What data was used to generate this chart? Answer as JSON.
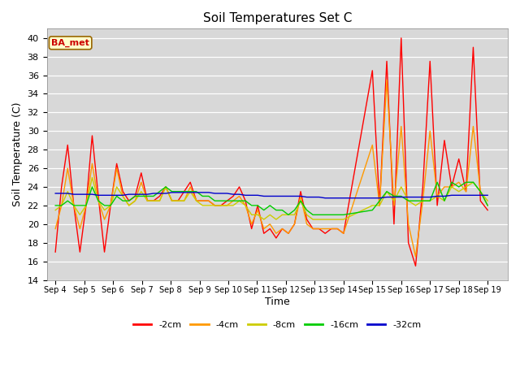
{
  "title": "Soil Temperatures Set C",
  "xlabel": "Time",
  "ylabel": "Soil Temperature (C)",
  "ylim": [
    14,
    41
  ],
  "yticks": [
    14,
    16,
    18,
    20,
    22,
    24,
    26,
    28,
    30,
    32,
    34,
    36,
    38,
    40
  ],
  "annotation": "BA_met",
  "plot_bg_color": "#d8d8d8",
  "fig_bg_color": "#ffffff",
  "legend_colors": {
    "-2cm": "#ff0000",
    "-4cm": "#ff9900",
    "-8cm": "#cccc00",
    "-16cm": "#00cc00",
    "-32cm": "#0000cc"
  },
  "x_labels": [
    "Sep 4",
    "Sep 5",
    "Sep 6",
    "Sep 7",
    "Sep 8",
    "Sep 9",
    "Sep 10",
    "Sep 11",
    "Sep 12",
    "Sep 13",
    "Sep 14",
    "Sep 15",
    "Sep 16",
    "Sep 17",
    "Sep 18",
    "Sep 19"
  ],
  "n_points": 48,
  "series": {
    "-2cm": [
      17.0,
      24.0,
      28.5,
      22.0,
      17.0,
      22.0,
      29.5,
      23.0,
      17.0,
      22.0,
      26.5,
      23.5,
      22.5,
      23.0,
      25.5,
      22.5,
      22.5,
      23.0,
      24.0,
      22.5,
      22.5,
      23.5,
      24.5,
      22.5,
      22.5,
      22.5,
      22.0,
      22.0,
      22.5,
      23.0,
      24.0,
      22.5,
      19.5,
      22.0,
      19.0,
      19.5,
      18.5,
      19.5,
      19.0,
      20.0,
      23.5,
      20.5,
      19.5,
      19.5,
      19.0,
      19.5,
      19.5,
      19.0
    ],
    "-4cm": [
      19.5,
      22.0,
      26.0,
      22.0,
      19.5,
      22.0,
      26.5,
      22.5,
      20.5,
      22.0,
      26.0,
      23.0,
      22.0,
      22.5,
      24.5,
      22.5,
      22.5,
      22.5,
      24.0,
      22.5,
      22.5,
      22.5,
      24.0,
      22.5,
      22.5,
      22.5,
      22.0,
      22.0,
      22.0,
      22.5,
      23.0,
      22.0,
      20.0,
      21.5,
      19.5,
      20.0,
      19.0,
      19.5,
      19.0,
      20.0,
      23.0,
      20.0,
      19.5,
      19.5,
      19.5,
      19.5,
      19.5,
      19.0
    ],
    "-8cm": [
      21.5,
      22.0,
      23.5,
      22.0,
      21.0,
      22.0,
      25.0,
      22.5,
      21.5,
      22.0,
      24.0,
      23.0,
      22.0,
      22.5,
      23.5,
      22.5,
      22.5,
      22.5,
      24.0,
      22.5,
      22.5,
      22.5,
      23.5,
      22.5,
      22.0,
      22.0,
      22.0,
      22.0,
      22.0,
      22.0,
      22.5,
      22.0,
      21.0,
      21.0,
      20.5,
      21.0,
      20.5,
      21.0,
      21.0,
      21.0,
      22.5,
      21.0,
      20.5,
      20.5,
      20.5,
      20.5,
      20.5,
      20.5
    ],
    "-16cm": [
      22.0,
      22.0,
      22.5,
      22.0,
      22.0,
      22.0,
      24.0,
      22.5,
      22.0,
      22.0,
      23.0,
      22.5,
      22.5,
      23.0,
      23.0,
      23.0,
      23.0,
      23.5,
      24.0,
      23.5,
      23.5,
      23.5,
      23.5,
      23.5,
      23.0,
      23.0,
      22.5,
      22.5,
      22.5,
      22.5,
      22.5,
      22.5,
      22.0,
      22.0,
      21.5,
      22.0,
      21.5,
      21.5,
      21.0,
      21.5,
      22.5,
      21.5,
      21.0,
      21.0,
      21.0,
      21.0,
      21.0,
      21.0
    ],
    "-32cm": [
      23.3,
      23.3,
      23.3,
      23.2,
      23.2,
      23.2,
      23.2,
      23.1,
      23.1,
      23.1,
      23.1,
      23.1,
      23.2,
      23.2,
      23.2,
      23.2,
      23.3,
      23.3,
      23.3,
      23.4,
      23.4,
      23.4,
      23.4,
      23.4,
      23.4,
      23.4,
      23.3,
      23.3,
      23.3,
      23.2,
      23.2,
      23.1,
      23.1,
      23.1,
      23.0,
      23.0,
      23.0,
      23.0,
      23.0,
      23.0,
      23.0,
      22.9,
      22.9,
      22.9,
      22.8,
      22.8,
      22.8,
      22.8
    ]
  },
  "series2": {
    "-2cm": [
      36.5,
      22.0,
      37.5,
      20.0,
      40.0,
      18.0,
      15.5,
      24.0,
      37.5,
      22.0,
      29.0,
      24.0,
      27.0,
      23.5,
      39.0,
      22.5,
      21.5
    ],
    "-4cm": [
      28.5,
      22.0,
      35.5,
      22.0,
      30.5,
      20.0,
      16.5,
      22.5,
      30.0,
      23.0,
      24.0,
      24.0,
      24.5,
      23.5,
      30.5,
      23.5,
      22.0
    ],
    "-8cm": [
      22.0,
      22.0,
      23.5,
      22.5,
      24.0,
      22.5,
      22.0,
      22.5,
      22.5,
      23.0,
      22.5,
      24.0,
      23.5,
      24.0,
      24.5,
      23.5,
      22.5
    ],
    "-16cm": [
      21.5,
      22.5,
      23.5,
      23.0,
      23.0,
      22.5,
      22.5,
      22.5,
      22.5,
      24.5,
      22.5,
      24.5,
      24.0,
      24.5,
      24.5,
      23.5,
      22.0
    ],
    "-32cm": [
      22.8,
      22.8,
      22.9,
      22.9,
      22.9,
      22.9,
      22.9,
      22.9,
      22.9,
      23.0,
      23.0,
      23.1,
      23.1,
      23.1,
      23.1,
      23.1,
      23.1
    ]
  }
}
